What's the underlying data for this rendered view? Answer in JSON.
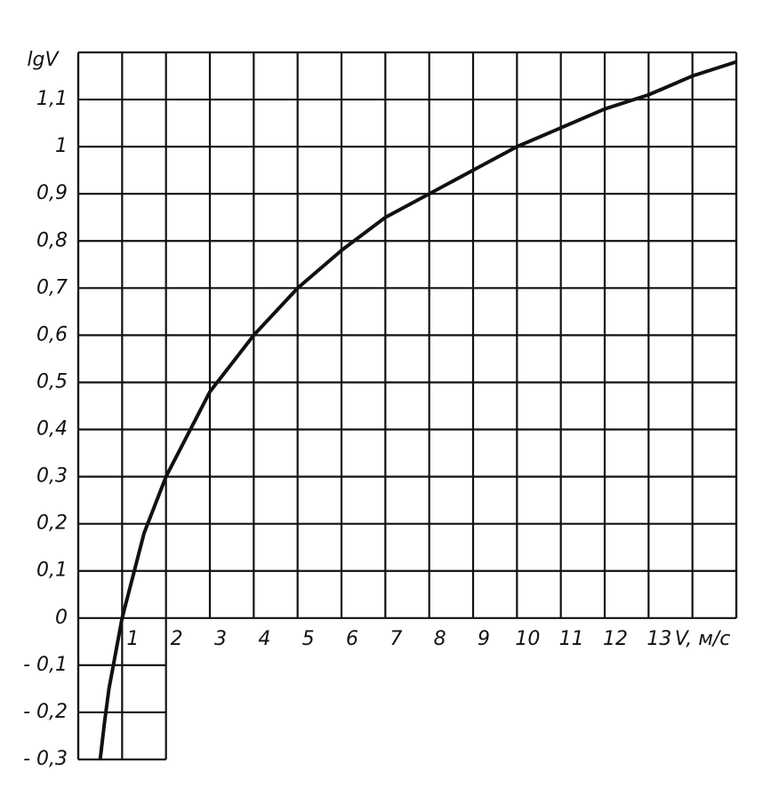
{
  "chart_data": {
    "type": "line",
    "y_title": "lgV",
    "x_title": "V, м/с",
    "x": [
      0.5,
      0.6,
      0.7,
      0.8,
      1,
      1.5,
      2,
      3,
      4,
      5,
      6,
      7,
      8,
      9,
      10,
      11,
      12,
      13,
      14,
      15
    ],
    "series": [
      {
        "color": "#111111",
        "values": [
          -0.3,
          -0.22,
          -0.15,
          -0.1,
          0,
          0.18,
          0.3,
          0.48,
          0.6,
          0.7,
          0.78,
          0.85,
          0.9,
          0.95,
          1.0,
          1.04,
          1.08,
          1.11,
          1.15,
          1.18
        ]
      }
    ],
    "xlim": [
      0,
      15
    ],
    "ylim": [
      -0.3,
      1.2
    ],
    "xticks": [
      1,
      2,
      3,
      4,
      5,
      6,
      7,
      8,
      9,
      10,
      11,
      12,
      13
    ],
    "yticks": [
      {
        "value": -0.3,
        "label": "- 0,3"
      },
      {
        "value": -0.2,
        "label": "- 0,2"
      },
      {
        "value": -0.1,
        "label": "- 0,1"
      },
      0,
      {
        "value": 0.1,
        "label": "0,1"
      },
      {
        "value": 0.2,
        "label": "0,2"
      },
      {
        "value": 0.3,
        "label": "0,3"
      },
      {
        "value": 0.4,
        "label": "0,4"
      },
      {
        "value": 0.5,
        "label": "0,5"
      },
      {
        "value": 0.6,
        "label": "0,6"
      },
      {
        "value": 0.7,
        "label": "0,7"
      },
      {
        "value": 0.8,
        "label": "0,8"
      },
      {
        "value": 0.9,
        "label": "0,9"
      },
      1,
      {
        "value": 1.1,
        "label": "1,1"
      }
    ],
    "grid": true
  }
}
